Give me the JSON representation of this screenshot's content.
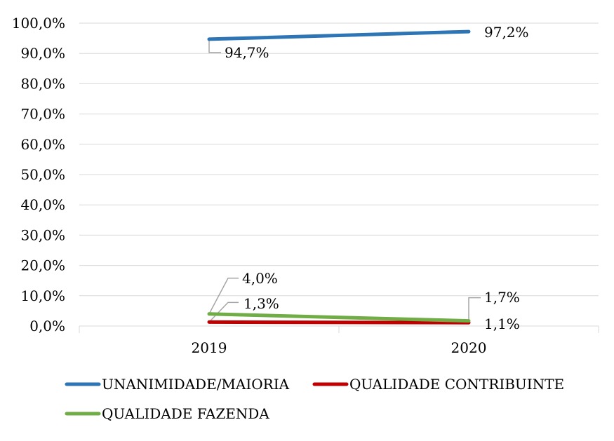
{
  "chart_data": {
    "type": "line",
    "title": "",
    "xlabel": "",
    "ylabel": "",
    "categories": [
      "2019",
      "2020"
    ],
    "ylim": [
      0,
      100
    ],
    "yticks": [
      "0,0%",
      "10,0%",
      "20,0%",
      "30,0%",
      "40,0%",
      "50,0%",
      "60,0%",
      "70,0%",
      "80,0%",
      "90,0%",
      "100,0%"
    ],
    "grid": true,
    "legend_position": "bottom",
    "series": [
      {
        "name": "UNANIMIDADE/MAIORIA",
        "color": "#2E75B6",
        "values": [
          94.7,
          97.2
        ],
        "labels": [
          "94,7%",
          "97,2%"
        ]
      },
      {
        "name": "QUALIDADE CONTRIBUINTE",
        "color": "#C00000",
        "values": [
          1.3,
          1.1
        ],
        "labels": [
          "1,3%",
          "1,1%"
        ]
      },
      {
        "name": "QUALIDADE FAZENDA",
        "color": "#70AD47",
        "values": [
          4.0,
          1.7
        ],
        "labels": [
          "4,0%",
          "1,7%"
        ]
      }
    ]
  }
}
